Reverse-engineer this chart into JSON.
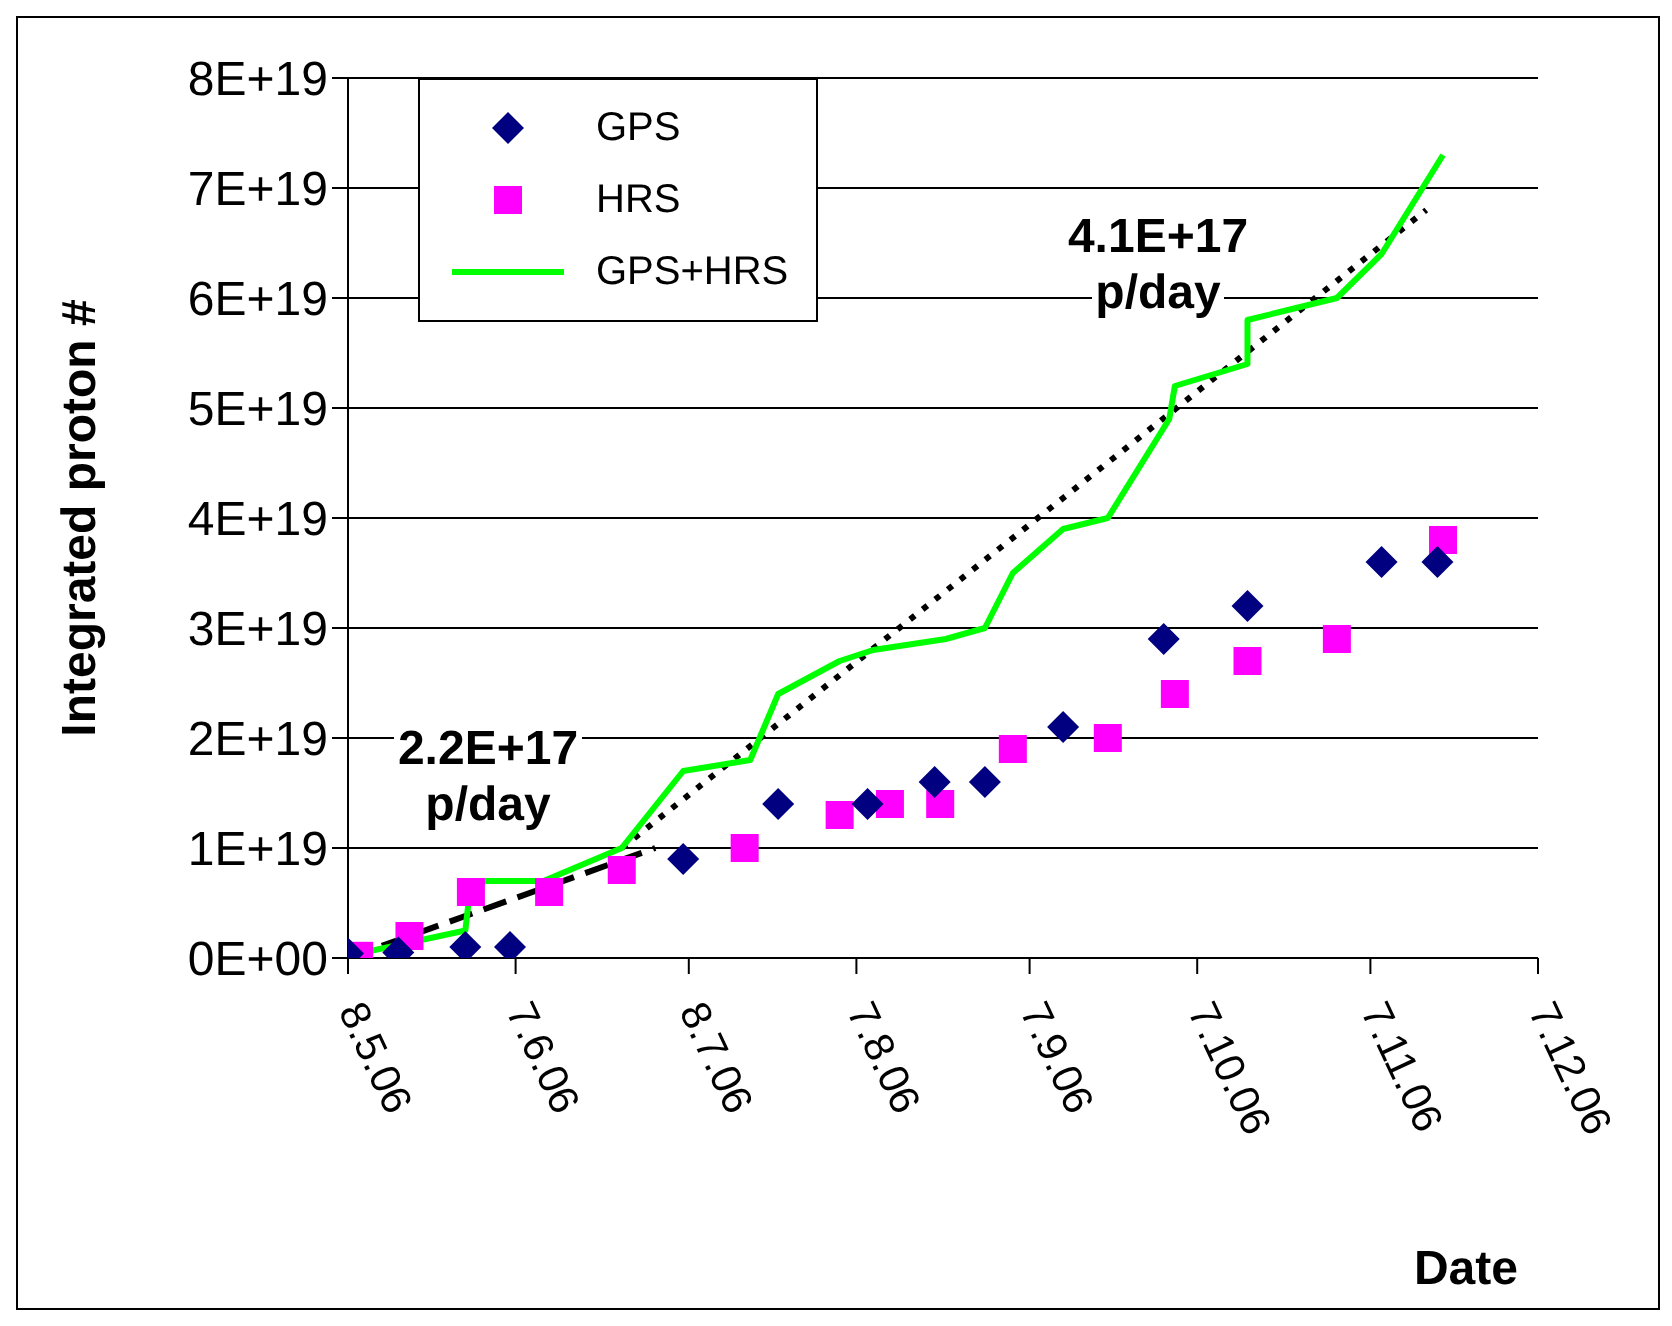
{
  "chart_data": {
    "type": "scatter",
    "xlabel": "Date",
    "ylabel": "Integrated proton #",
    "xlim": [
      "2006-05-08",
      "2006-12-07"
    ],
    "xticks": [
      {
        "value": "2006-05-08",
        "label": "8.5.06"
      },
      {
        "value": "2006-06-07",
        "label": "7.6.06"
      },
      {
        "value": "2006-07-08",
        "label": "8.7.06"
      },
      {
        "value": "2006-08-07",
        "label": "7.8.06"
      },
      {
        "value": "2006-09-07",
        "label": "7.9.06"
      },
      {
        "value": "2006-10-07",
        "label": "7.10.06"
      },
      {
        "value": "2006-11-07",
        "label": "7.11.06"
      },
      {
        "value": "2006-12-07",
        "label": "7.12.06"
      }
    ],
    "ylim": [
      0,
      8e+19
    ],
    "yticks": [
      {
        "value": 0,
        "label": "0E+00"
      },
      {
        "value": 1e+19,
        "label": "1E+19"
      },
      {
        "value": 2e+19,
        "label": "2E+19"
      },
      {
        "value": 3e+19,
        "label": "3E+19"
      },
      {
        "value": 4e+19,
        "label": "4E+19"
      },
      {
        "value": 5e+19,
        "label": "5E+19"
      },
      {
        "value": 6e+19,
        "label": "6E+19"
      },
      {
        "value": 7e+19,
        "label": "7E+19"
      },
      {
        "value": 8e+19,
        "label": "8E+19"
      }
    ],
    "grid": "y",
    "legend": "top left",
    "series": [
      {
        "name": "GPS",
        "marker": "diamond",
        "color": "#000080",
        "x": [
          "2006-05-08",
          "2006-05-17",
          "2006-05-29",
          "2006-06-06",
          "2006-07-07",
          "2006-07-24",
          "2006-08-09",
          "2006-08-21",
          "2006-08-30",
          "2006-09-13",
          "2006-10-01",
          "2006-10-16",
          "2006-11-09",
          "2006-11-19"
        ],
        "values": [
          4e+17,
          5e+17,
          1e+18,
          1e+18,
          9e+18,
          1.4e+19,
          1.4e+19,
          1.6e+19,
          1.6e+19,
          2.1e+19,
          2.9e+19,
          3.2e+19,
          3.6e+19,
          3.6e+19
        ]
      },
      {
        "name": "HRS",
        "marker": "square",
        "color": "#ff00ff",
        "x": [
          "2006-05-10",
          "2006-05-19",
          "2006-05-30",
          "2006-06-13",
          "2006-06-26",
          "2006-07-18",
          "2006-08-04",
          "2006-08-13",
          "2006-08-22",
          "2006-09-04",
          "2006-09-21",
          "2006-10-03",
          "2006-10-16",
          "2006-11-01",
          "2006-11-20"
        ],
        "values": [
          2e+17,
          2e+18,
          6e+18,
          6e+18,
          8e+18,
          1e+19,
          1.3e+19,
          1.4e+19,
          1.4e+19,
          1.9e+19,
          2e+19,
          2.4e+19,
          2.7e+19,
          2.9e+19,
          3.8e+19
        ]
      },
      {
        "name": "GPS+HRS",
        "type": "line",
        "marker": "none",
        "line_style": "solid",
        "color": "#00ff00",
        "x": [
          "2006-05-08",
          "2006-05-29",
          "2006-05-30",
          "2006-06-12",
          "2006-06-26",
          "2006-07-07",
          "2006-07-19",
          "2006-07-24",
          "2006-08-04",
          "2006-08-10",
          "2006-08-23",
          "2006-08-30",
          "2006-09-04",
          "2006-09-13",
          "2006-09-21",
          "2006-10-02",
          "2006-10-03",
          "2006-10-16",
          "2006-10-16",
          "2006-11-01",
          "2006-11-09",
          "2006-11-20"
        ],
        "values": [
          2e+17,
          2.5e+18,
          7e+18,
          7e+18,
          1e+19,
          1.7e+19,
          1.8e+19,
          2.4e+19,
          2.7e+19,
          2.8e+19,
          2.9e+19,
          3e+19,
          3.5e+19,
          3.9e+19,
          4e+19,
          4.9e+19,
          5.2e+19,
          5.4e+19,
          5.8e+19,
          6e+19,
          6.4e+19,
          7.3e+19
        ]
      },
      {
        "type": "line",
        "marker": "none",
        "line_style": "dashed",
        "color": "#000000",
        "x": [
          "2006-05-08",
          "2006-07-02"
        ],
        "values": [
          0,
          1e+19
        ]
      },
      {
        "type": "line",
        "marker": "none",
        "line_style": "dotted",
        "color": "#000000",
        "x": [
          "2006-06-26",
          "2006-11-17"
        ],
        "values": [
          1e+19,
          6.8e+19
        ]
      }
    ],
    "annotations": [
      "2.2E+17\np/day",
      "4.1E+17\np/day"
    ]
  }
}
